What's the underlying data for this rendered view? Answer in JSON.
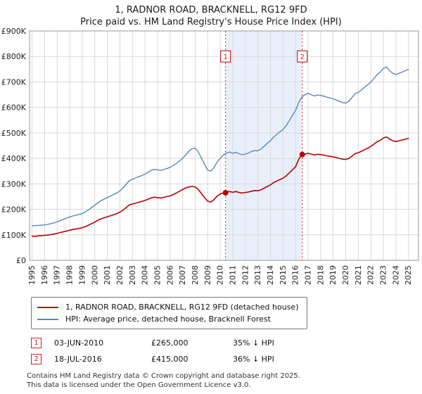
{
  "title": "1, RADNOR ROAD, BRACKNELL, RG12 9FD",
  "subtitle": "Price paid vs. HM Land Registry's House Price Index (HPI)",
  "chart_data": {
    "type": "line",
    "title": "1, RADNOR ROAD, BRACKNELL, RG12 9FD",
    "subtitle": "Price paid vs. HM Land Registry's House Price Index (HPI)",
    "xlabel": "",
    "ylabel": "",
    "grid": true,
    "legend_position": "bottom",
    "xlim": [
      1994.8,
      2025.8
    ],
    "ylim": [
      0,
      900000
    ],
    "grid_color": "#d9d9d9",
    "marker_color": "#cc2222",
    "marker_box_value": 800000,
    "band": {
      "from": 2010.42,
      "to": 2016.54,
      "color": "#e9effa"
    },
    "x_ticks": [
      1995,
      1996,
      1997,
      1998,
      1999,
      2000,
      2001,
      2002,
      2003,
      2004,
      2005,
      2006,
      2007,
      2008,
      2009,
      2010,
      2011,
      2012,
      2013,
      2014,
      2015,
      2016,
      2017,
      2018,
      2019,
      2020,
      2021,
      2022,
      2023,
      2024,
      2025
    ],
    "y_ticks": [
      {
        "value": 0,
        "label": "£0"
      },
      {
        "value": 100000,
        "label": "£100K"
      },
      {
        "value": 200000,
        "label": "£200K"
      },
      {
        "value": 300000,
        "label": "£300K"
      },
      {
        "value": 400000,
        "label": "£400K"
      },
      {
        "value": 500000,
        "label": "£500K"
      },
      {
        "value": 600000,
        "label": "£600K"
      },
      {
        "value": 700000,
        "label": "£700K"
      },
      {
        "value": 800000,
        "label": "£800K"
      },
      {
        "value": 900000,
        "label": "£900K"
      }
    ],
    "series": [
      {
        "name": "1, RADNOR ROAD, BRACKNELL, RG12 9FD (detached house)",
        "color": "#b80000",
        "width": 1.6,
        "x_start": 1995,
        "x_step": 0.25,
        "values": [
          95000,
          94000,
          96000,
          97000,
          98000,
          99000,
          101000,
          103000,
          106000,
          109000,
          112000,
          115000,
          118000,
          121000,
          123000,
          125000,
          128000,
          132000,
          138000,
          144000,
          150000,
          157000,
          163000,
          167000,
          171000,
          175000,
          179000,
          183000,
          189000,
          197000,
          207000,
          217000,
          221000,
          224000,
          228000,
          231000,
          235000,
          240000,
          245000,
          248000,
          246000,
          245000,
          247000,
          250000,
          253000,
          258000,
          264000,
          271000,
          278000,
          284000,
          288000,
          290000,
          288000,
          278000,
          262000,
          246000,
          232000,
          229000,
          238000,
          252000,
          260000,
          265000,
          268000,
          270000,
          267000,
          270000,
          266000,
          264000,
          266000,
          268000,
          271000,
          274000,
          273000,
          277000,
          283000,
          290000,
          296000,
          305000,
          311000,
          317000,
          322000,
          331000,
          343000,
          355000,
          367000,
          396000,
          415000,
          417000,
          420000,
          417000,
          413000,
          416000,
          415000,
          413000,
          410000,
          408000,
          406000,
          403000,
          400000,
          397000,
          396000,
          400000,
          409000,
          419000,
          422000,
          428000,
          434000,
          440000,
          447000,
          456000,
          465000,
          471000,
          480000,
          484000,
          476000,
          469000,
          466000,
          469000,
          472000,
          475000,
          478000
        ]
      },
      {
        "name": "HPI: Average price, detached house, Bracknell Forest",
        "color": "#5b87b8",
        "width": 1.4,
        "x_start": 1995,
        "x_step": 0.25,
        "values": [
          135000,
          136000,
          137000,
          138000,
          139000,
          141000,
          144000,
          147000,
          151000,
          156000,
          161000,
          166000,
          170000,
          174000,
          177000,
          180000,
          184000,
          190000,
          198000,
          207000,
          216000,
          226000,
          234000,
          240000,
          246000,
          252000,
          258000,
          264000,
          272000,
          284000,
          298000,
          312000,
          318000,
          323000,
          328000,
          333000,
          338000,
          346000,
          353000,
          357000,
          355000,
          353000,
          356000,
          360000,
          365000,
          372000,
          380000,
          390000,
          400000,
          414000,
          428000,
          438000,
          440000,
          425000,
          402000,
          376000,
          354000,
          350000,
          364000,
          385000,
          400000,
          413000,
          421000,
          425000,
          420000,
          424000,
          418000,
          414000,
          417000,
          421000,
          427000,
          431000,
          430000,
          437000,
          447000,
          459000,
          469000,
          483000,
          494000,
          504000,
          513000,
          528000,
          548000,
          568000,
          588000,
          618000,
          640000,
          650000,
          655000,
          650000,
          645000,
          649000,
          647000,
          644000,
          640000,
          637000,
          634000,
          629000,
          624000,
          619000,
          617000,
          624000,
          639000,
          654000,
          659000,
          668000,
          679000,
          689000,
          699000,
          714000,
          729000,
          739000,
          753000,
          759000,
          744000,
          734000,
          729000,
          734000,
          739000,
          744000,
          749000
        ]
      }
    ],
    "markers": [
      {
        "label": "1",
        "x": 2010.42,
        "value": 265000,
        "date": "03-JUN-2010",
        "price": "£265,000",
        "note": "35% ↓ HPI"
      },
      {
        "label": "2",
        "x": 2016.54,
        "value": 415000,
        "date": "18-JUL-2016",
        "price": "£415,000",
        "note": "36% ↓ HPI"
      }
    ]
  },
  "footer": {
    "line1": "Contains HM Land Registry data © Crown copyright and database right 2025.",
    "line2": "This data is licensed under the Open Government Licence v3.0."
  }
}
